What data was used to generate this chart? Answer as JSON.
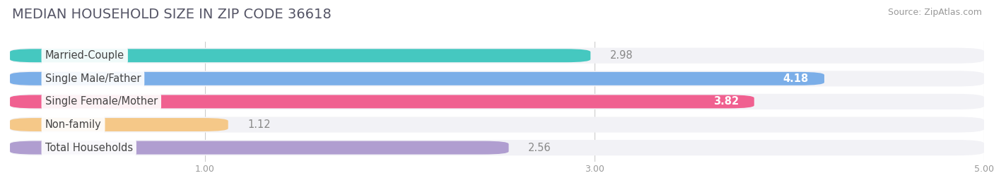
{
  "title": "MEDIAN HOUSEHOLD SIZE IN ZIP CODE 36618",
  "source": "Source: ZipAtlas.com",
  "categories": [
    "Married-Couple",
    "Single Male/Father",
    "Single Female/Mother",
    "Non-family",
    "Total Households"
  ],
  "values": [
    2.98,
    4.18,
    3.82,
    1.12,
    2.56
  ],
  "bar_colors": [
    "#45C8C0",
    "#7BAEE8",
    "#F06090",
    "#F5C888",
    "#B09ED0"
  ],
  "bar_bg_color": "#E8E8EC",
  "xlim": [
    0,
    5.0
  ],
  "xticks": [
    1.0,
    3.0,
    5.0
  ],
  "label_text_color": "#444444",
  "value_color_outside": "#888888",
  "value_color_inside": "#FFFFFF",
  "label_fontsize": 10.5,
  "value_fontsize": 10.5,
  "title_fontsize": 14,
  "source_fontsize": 9,
  "background_color": "#FFFFFF",
  "bar_height": 0.58,
  "inside_threshold": 3.5,
  "row_bg_color": "#F2F2F6"
}
